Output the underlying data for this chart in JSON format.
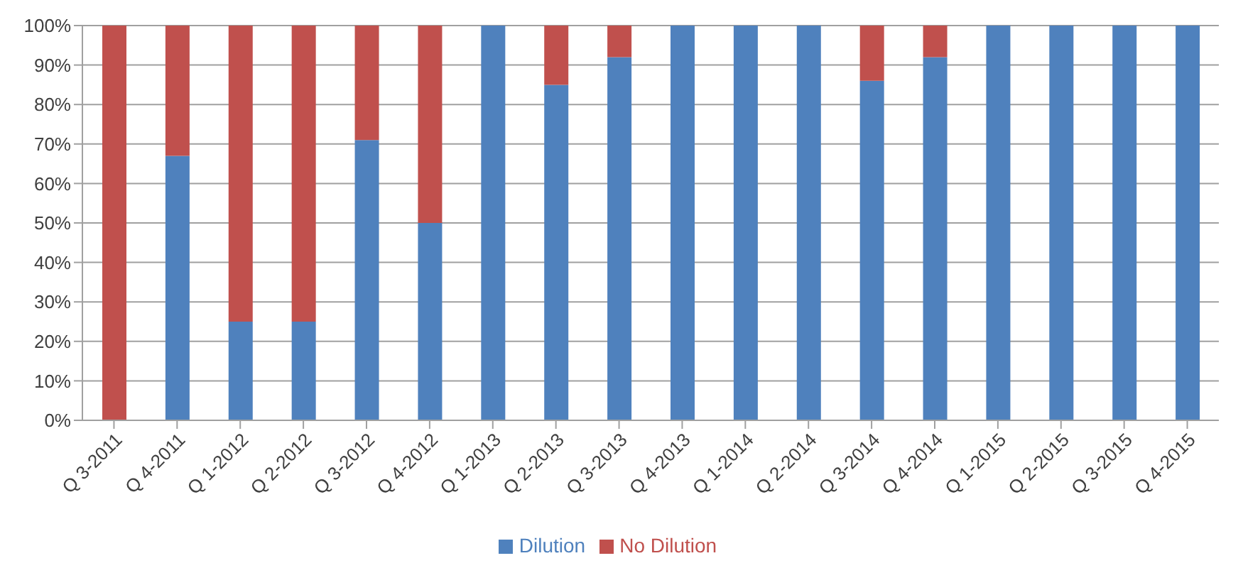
{
  "chart_data": {
    "type": "bar",
    "stacked": true,
    "categories": [
      "Q 3-2011",
      "Q 4-2011",
      "Q 1-2012",
      "Q 2-2012",
      "Q 3-2012",
      "Q 4-2012",
      "Q 1-2013",
      "Q 2-2013",
      "Q 3-2013",
      "Q 4-2013",
      "Q 1-2014",
      "Q 2-2014",
      "Q 3-2014",
      "Q 4-2014",
      "Q 1-2015",
      "Q 2-2015",
      "Q 3-2015",
      "Q 4-2015"
    ],
    "series": [
      {
        "name": "Dilution",
        "color": "#4f81bd",
        "values": [
          0,
          67,
          25,
          25,
          71,
          50,
          100,
          85,
          92,
          100,
          100,
          100,
          86,
          92,
          100,
          100,
          100,
          100
        ]
      },
      {
        "name": "No Dilution",
        "color": "#c0504d",
        "values": [
          100,
          33,
          75,
          75,
          29,
          50,
          0,
          15,
          8,
          0,
          0,
          0,
          14,
          8,
          0,
          0,
          0,
          0
        ]
      }
    ],
    "ylim": [
      0,
      100
    ],
    "yticks": [
      {
        "value": 0,
        "label": "0%"
      },
      {
        "value": 10,
        "label": "10%"
      },
      {
        "value": 20,
        "label": "20%"
      },
      {
        "value": 30,
        "label": "30%"
      },
      {
        "value": 40,
        "label": "40%"
      },
      {
        "value": 50,
        "label": "50%"
      },
      {
        "value": 60,
        "label": "60%"
      },
      {
        "value": 70,
        "label": "70%"
      },
      {
        "value": 80,
        "label": "80%"
      },
      {
        "value": 90,
        "label": "90%"
      },
      {
        "value": 100,
        "label": "100%"
      }
    ],
    "grid": "y",
    "legend": "bottom"
  }
}
